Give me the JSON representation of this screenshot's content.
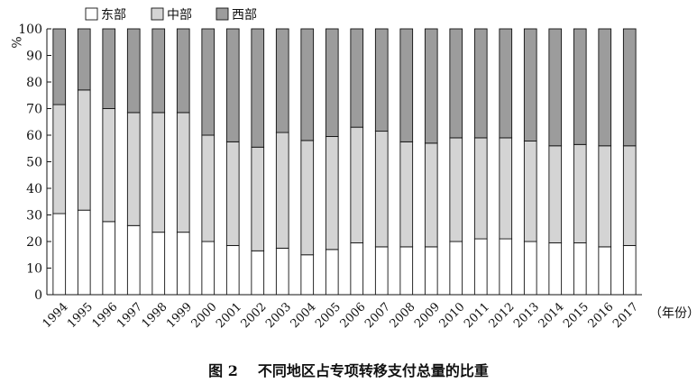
{
  "chart_data": {
    "type": "bar",
    "stacked": true,
    "title": "不同地区占专项转移支付总量的比重",
    "figure_label": "图 2",
    "ylabel": "%",
    "xlabel": "（年份）",
    "ylim": [
      0,
      100
    ],
    "yticks": [
      0,
      10,
      20,
      30,
      40,
      50,
      60,
      70,
      80,
      90,
      100
    ],
    "grid": false,
    "legend_position": "top-left",
    "categories": [
      "1994",
      "1995",
      "1996",
      "1997",
      "1998",
      "1999",
      "2000",
      "2001",
      "2002",
      "2003",
      "2004",
      "2005",
      "2006",
      "2007",
      "2008",
      "2009",
      "2010",
      "2011",
      "2012",
      "2013",
      "2014",
      "2015",
      "2016",
      "2017"
    ],
    "series": [
      {
        "name": "东部",
        "color": "#ffffff",
        "values": [
          30.5,
          31.8,
          27.5,
          26,
          23.5,
          23.5,
          20,
          18.5,
          16.5,
          17.5,
          15,
          17,
          19.5,
          18,
          18,
          18,
          20,
          21,
          21,
          20,
          19.5,
          19.5,
          18,
          18.5
        ]
      },
      {
        "name": "中部",
        "color": "#d4d4d4",
        "values": [
          41,
          45.2,
          42.5,
          42.5,
          45,
          45,
          40,
          39,
          39,
          43.5,
          43,
          42.5,
          43.5,
          43.5,
          39.5,
          39,
          39,
          38,
          38,
          37.8,
          36.5,
          37,
          38,
          37.5
        ]
      },
      {
        "name": "西部",
        "color": "#9c9c9c",
        "values": [
          28.5,
          23,
          30,
          31.5,
          31.5,
          31.5,
          40,
          42.5,
          44.5,
          39,
          42,
          40.5,
          37,
          38.5,
          42.5,
          43,
          41,
          41,
          41,
          42.2,
          44,
          43.5,
          44,
          44
        ]
      }
    ]
  }
}
